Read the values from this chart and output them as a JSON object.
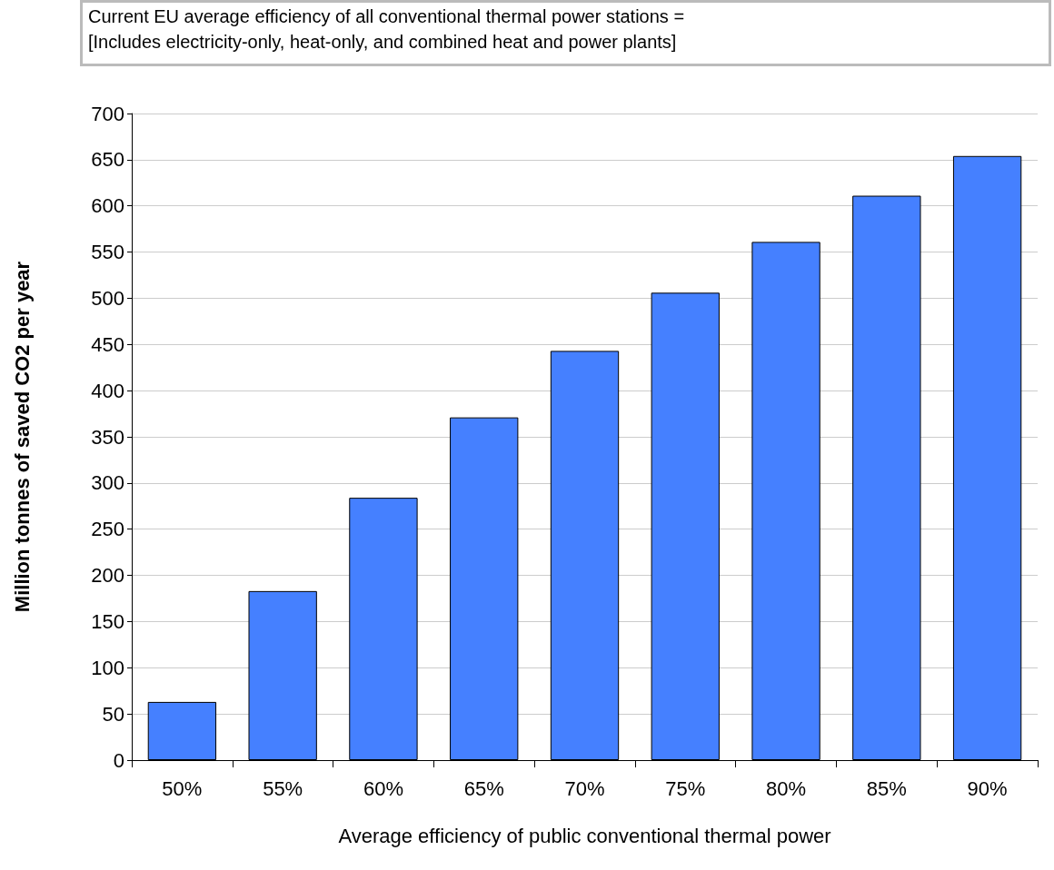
{
  "chart_data": {
    "type": "bar",
    "annotations": [
      "Current EU average efficiency of all conventional thermal power stations =",
      "[Includes electricity-only, heat-only, and combined heat and power plants]"
    ],
    "xlabel": "Average efficiency of public conventional thermal power",
    "ylabel": "Million tonnes of saved CO2 per year",
    "categories": [
      "50%",
      "55%",
      "60%",
      "65%",
      "70%",
      "75%",
      "80%",
      "85%",
      "90%"
    ],
    "values": [
      63,
      183,
      284,
      371,
      443,
      506,
      561,
      611,
      654
    ],
    "color": "#4580ff",
    "ylim": [
      0,
      700
    ],
    "yticks": [
      0,
      50,
      100,
      150,
      200,
      250,
      300,
      350,
      400,
      450,
      500,
      550,
      600,
      650,
      700
    ],
    "grid": "y"
  }
}
